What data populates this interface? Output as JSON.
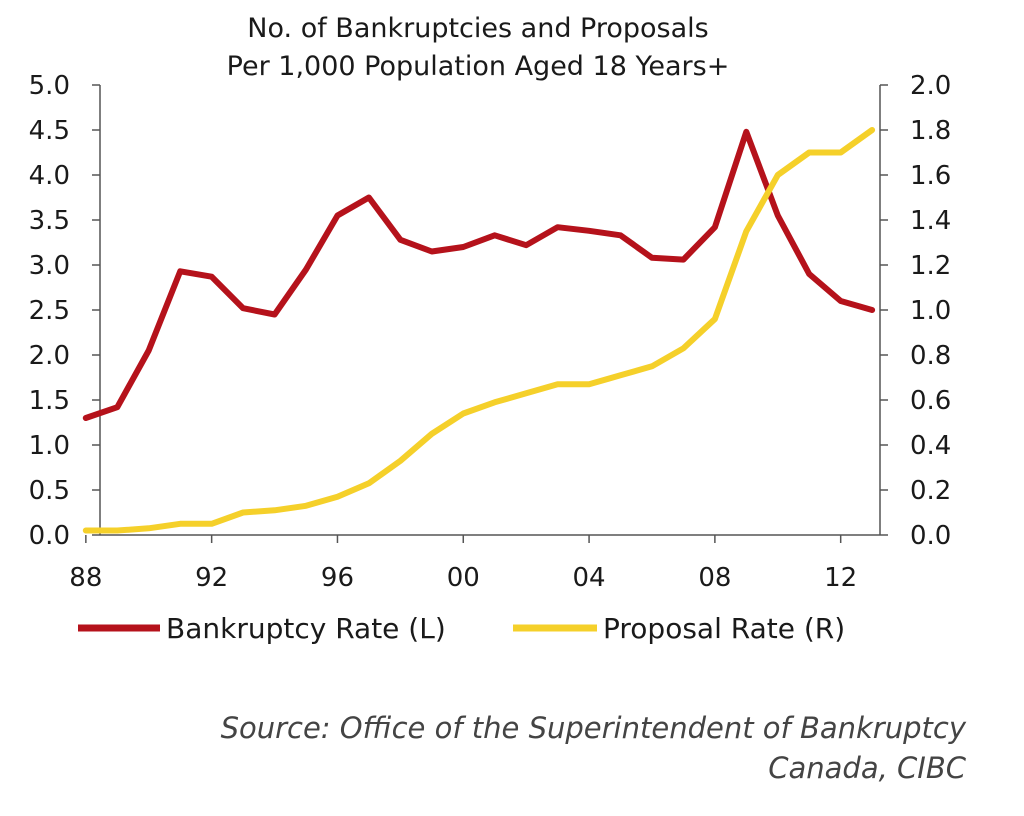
{
  "chart_data": {
    "type": "line",
    "title_lines": [
      "No. of Bankruptcies and Proposals",
      "Per 1,000 Population Aged 18 Years+"
    ],
    "xlabel": "",
    "x_ticks": [
      "88",
      "92",
      "96",
      "00",
      "04",
      "08",
      "12"
    ],
    "x": [
      1988,
      1989,
      1990,
      1991,
      1992,
      1993,
      1994,
      1995,
      1996,
      1997,
      1998,
      1999,
      2000,
      2001,
      2002,
      2003,
      2004,
      2005,
      2006,
      2007,
      2008,
      2009,
      2010,
      2011,
      2012,
      2013
    ],
    "y_left": {
      "ylim": [
        0,
        5.0
      ],
      "ticks": [
        "0.0",
        "0.5",
        "1.0",
        "1.5",
        "2.0",
        "2.5",
        "3.0",
        "3.5",
        "4.0",
        "4.5",
        "5.0"
      ]
    },
    "y_right": {
      "ylim": [
        0,
        2.0
      ],
      "ticks": [
        "0.0",
        "0.2",
        "0.4",
        "0.6",
        "0.8",
        "1.0",
        "1.2",
        "1.4",
        "1.6",
        "1.8",
        "2.0"
      ]
    },
    "series": [
      {
        "name": "Bankruptcy Rate (L)",
        "axis": "left",
        "color": "#b5121b",
        "values": [
          1.3,
          1.42,
          2.05,
          2.93,
          2.87,
          2.52,
          2.45,
          2.95,
          3.55,
          3.75,
          3.28,
          3.15,
          3.2,
          3.33,
          3.22,
          3.42,
          3.38,
          3.33,
          3.08,
          3.06,
          3.42,
          4.48,
          3.55,
          2.9,
          2.6,
          2.5
        ]
      },
      {
        "name": "Proposal Rate (R)",
        "axis": "right",
        "color": "#f5d02a",
        "values": [
          0.02,
          0.02,
          0.03,
          0.05,
          0.05,
          0.1,
          0.11,
          0.13,
          0.17,
          0.23,
          0.33,
          0.45,
          0.54,
          0.59,
          0.63,
          0.67,
          0.67,
          0.71,
          0.75,
          0.83,
          0.96,
          1.35,
          1.6,
          1.7,
          1.7,
          1.8
        ]
      }
    ],
    "legend_position": "bottom",
    "grid": false
  },
  "source": {
    "line1": "Source:  Office of the Superintendent of Bankruptcy",
    "line2": "Canada, CIBC"
  }
}
